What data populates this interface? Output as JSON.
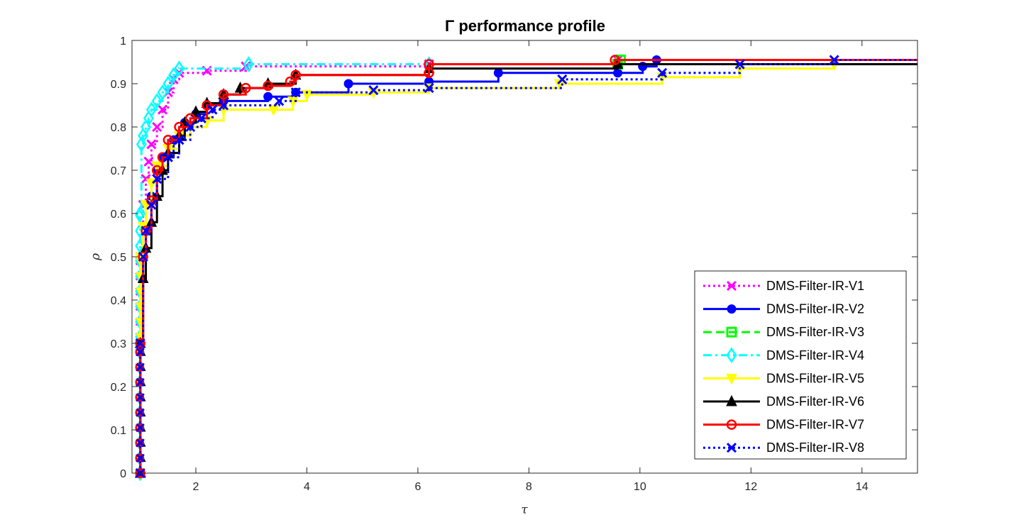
{
  "chart_data": {
    "type": "line",
    "title": "Γ performance profile",
    "xlabel": "τ",
    "ylabel": "ρ",
    "xlim": [
      0.85,
      15
    ],
    "ylim": [
      0,
      1
    ],
    "xticks": [
      "2",
      "4",
      "6",
      "8",
      "10",
      "12",
      "14"
    ],
    "yticks": [
      "0",
      "0.1",
      "0.2",
      "0.3",
      "0.4",
      "0.5",
      "0.6",
      "0.7",
      "0.8",
      "0.9",
      "1"
    ],
    "legend_position": "bottom-right",
    "grid": false,
    "series": [
      {
        "name": "DMS-Filter-IR-V1",
        "color": "#ff00ff",
        "dash": "dotted",
        "marker": "x",
        "points": [
          [
            1,
            0
          ],
          [
            1,
            0.5
          ],
          [
            1.05,
            0.62
          ],
          [
            1.1,
            0.68
          ],
          [
            1.15,
            0.72
          ],
          [
            1.2,
            0.76
          ],
          [
            1.3,
            0.8
          ],
          [
            1.4,
            0.84
          ],
          [
            1.5,
            0.88
          ],
          [
            1.6,
            0.91
          ],
          [
            1.7,
            0.925
          ],
          [
            2.2,
            0.93
          ],
          [
            2.9,
            0.94
          ],
          [
            6.2,
            0.945
          ],
          [
            9.6,
            0.955
          ],
          [
            15,
            0.955
          ]
        ]
      },
      {
        "name": "DMS-Filter-IR-V2",
        "color": "#0000ff",
        "dash": "solid",
        "marker": "circle",
        "points": [
          [
            1,
            0
          ],
          [
            1,
            0.3
          ],
          [
            1.05,
            0.5
          ],
          [
            1.1,
            0.57
          ],
          [
            1.2,
            0.64
          ],
          [
            1.3,
            0.7
          ],
          [
            1.4,
            0.73
          ],
          [
            1.6,
            0.77
          ],
          [
            1.8,
            0.81
          ],
          [
            2.0,
            0.83
          ],
          [
            2.2,
            0.85
          ],
          [
            2.5,
            0.86
          ],
          [
            3.3,
            0.87
          ],
          [
            3.8,
            0.88
          ],
          [
            4.75,
            0.9
          ],
          [
            6.2,
            0.905
          ],
          [
            7.45,
            0.925
          ],
          [
            9.6,
            0.925
          ],
          [
            10.05,
            0.94
          ],
          [
            10.3,
            0.955
          ],
          [
            15,
            0.955
          ]
        ]
      },
      {
        "name": "DMS-Filter-IR-V3",
        "color": "#00ff00",
        "dash": "dashed",
        "marker": "square",
        "points": [
          [
            9.6,
            0.945
          ],
          [
            9.65,
            0.955
          ],
          [
            15,
            0.955
          ]
        ]
      },
      {
        "name": "DMS-Filter-IR-V4",
        "color": "#00ffff",
        "dash": "dashdot",
        "marker": "diamond",
        "points": [
          [
            1,
            0
          ],
          [
            1,
            0.6
          ],
          [
            1.02,
            0.76
          ],
          [
            1.05,
            0.78
          ],
          [
            1.1,
            0.8
          ],
          [
            1.15,
            0.82
          ],
          [
            1.2,
            0.84
          ],
          [
            1.3,
            0.86
          ],
          [
            1.4,
            0.88
          ],
          [
            1.5,
            0.9
          ],
          [
            1.6,
            0.92
          ],
          [
            1.7,
            0.935
          ],
          [
            2.95,
            0.945
          ],
          [
            6.2,
            0.945
          ],
          [
            15,
            0.945
          ]
        ]
      },
      {
        "name": "DMS-Filter-IR-V5",
        "color": "#ffff00",
        "dash": "solid",
        "marker": "triangle-down",
        "points": [
          [
            1,
            0
          ],
          [
            1,
            0.5
          ],
          [
            1.05,
            0.57
          ],
          [
            1.1,
            0.62
          ],
          [
            1.2,
            0.67
          ],
          [
            1.3,
            0.71
          ],
          [
            1.5,
            0.75
          ],
          [
            1.7,
            0.78
          ],
          [
            1.9,
            0.8
          ],
          [
            2.2,
            0.815
          ],
          [
            2.5,
            0.84
          ],
          [
            3.4,
            0.84
          ],
          [
            3.75,
            0.86
          ],
          [
            4.0,
            0.875
          ],
          [
            5.2,
            0.88
          ],
          [
            6.2,
            0.89
          ],
          [
            8.55,
            0.9
          ],
          [
            10.4,
            0.915
          ],
          [
            11.8,
            0.935
          ],
          [
            13.5,
            0.945
          ],
          [
            15,
            0.945
          ]
        ]
      },
      {
        "name": "DMS-Filter-IR-V6",
        "color": "#000000",
        "dash": "solid",
        "marker": "triangle-up",
        "points": [
          [
            1,
            0
          ],
          [
            1,
            0.3
          ],
          [
            1.05,
            0.45
          ],
          [
            1.1,
            0.52
          ],
          [
            1.2,
            0.58
          ],
          [
            1.3,
            0.64
          ],
          [
            1.4,
            0.7
          ],
          [
            1.5,
            0.74
          ],
          [
            1.7,
            0.78
          ],
          [
            1.8,
            0.81
          ],
          [
            2.0,
            0.835
          ],
          [
            2.2,
            0.855
          ],
          [
            2.5,
            0.875
          ],
          [
            2.8,
            0.89
          ],
          [
            3.3,
            0.9
          ],
          [
            3.8,
            0.92
          ],
          [
            6.2,
            0.935
          ],
          [
            9.6,
            0.945
          ],
          [
            15,
            0.945
          ]
        ]
      },
      {
        "name": "DMS-Filter-IR-V7",
        "color": "#ff0000",
        "dash": "solid",
        "marker": "circle-open",
        "points": [
          [
            1,
            0
          ],
          [
            1,
            0.3
          ],
          [
            1.05,
            0.5
          ],
          [
            1.1,
            0.56
          ],
          [
            1.2,
            0.63
          ],
          [
            1.3,
            0.7
          ],
          [
            1.4,
            0.73
          ],
          [
            1.5,
            0.77
          ],
          [
            1.7,
            0.8
          ],
          [
            1.9,
            0.82
          ],
          [
            2.2,
            0.85
          ],
          [
            2.5,
            0.875
          ],
          [
            2.9,
            0.89
          ],
          [
            3.3,
            0.895
          ],
          [
            3.7,
            0.905
          ],
          [
            3.8,
            0.92
          ],
          [
            6.2,
            0.925
          ],
          [
            6.2,
            0.945
          ],
          [
            9.55,
            0.955
          ],
          [
            15,
            0.955
          ]
        ]
      },
      {
        "name": "DMS-Filter-IR-V8",
        "color": "#0000ff",
        "dash": "dotted",
        "marker": "x",
        "points": [
          [
            1,
            0
          ],
          [
            1,
            0.3
          ],
          [
            1.05,
            0.5
          ],
          [
            1.1,
            0.56
          ],
          [
            1.2,
            0.62
          ],
          [
            1.3,
            0.68
          ],
          [
            1.5,
            0.73
          ],
          [
            1.7,
            0.77
          ],
          [
            1.9,
            0.8
          ],
          [
            2.1,
            0.82
          ],
          [
            2.3,
            0.84
          ],
          [
            2.5,
            0.85
          ],
          [
            3.5,
            0.86
          ],
          [
            3.8,
            0.88
          ],
          [
            5.2,
            0.885
          ],
          [
            6.2,
            0.89
          ],
          [
            8.6,
            0.91
          ],
          [
            10.4,
            0.925
          ],
          [
            11.8,
            0.945
          ],
          [
            13.5,
            0.955
          ],
          [
            15,
            0.955
          ]
        ]
      }
    ]
  }
}
